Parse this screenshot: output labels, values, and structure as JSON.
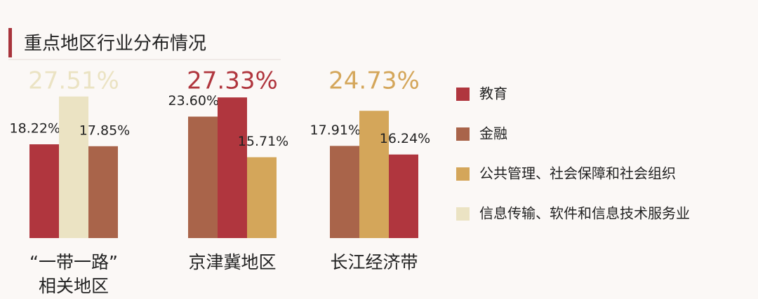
{
  "chart_data": {
    "type": "bar",
    "title": "重点地区行业分布情况",
    "categories": [
      "“一带一路”\n相关地区",
      "京津冀地区",
      "长江经济带"
    ],
    "series": [
      {
        "name": "教育",
        "color": "#b0363e",
        "values": [
          18.22,
          27.33,
          16.24
        ],
        "value_labels": [
          "18.22%",
          "27.33%",
          "16.24%"
        ]
      },
      {
        "name": "金融",
        "color": "#a9644a",
        "values": [
          17.85,
          23.6,
          17.91
        ],
        "value_labels": [
          "17.85%",
          "23.60%",
          "17.91%"
        ]
      },
      {
        "name": "公共管理、社会保障和社会组织",
        "color": "#d4a65a",
        "values": [
          null,
          15.71,
          24.73
        ],
        "value_labels": [
          null,
          "15.71%",
          "24.73%"
        ]
      },
      {
        "name": "信息传输、软件和信息技术服务业",
        "color": "#ebe3c3",
        "values": [
          27.51,
          null,
          null
        ],
        "value_labels": [
          "27.51%",
          null,
          null
        ]
      }
    ]
  }
}
